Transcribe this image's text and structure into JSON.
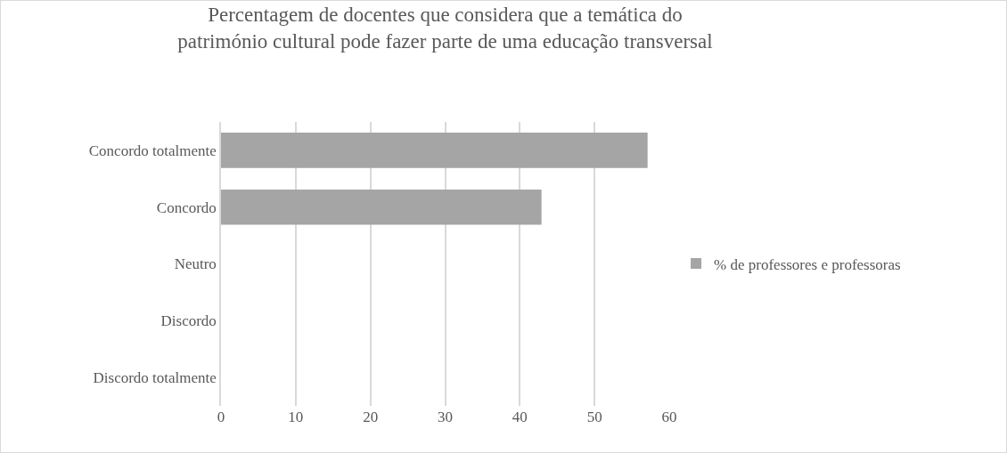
{
  "chart_data": {
    "type": "bar",
    "orientation": "horizontal",
    "title": "Percentagem de docentes que considera que a temática do\npatrimónio cultural pode fazer parte de uma educação transversal",
    "categories": [
      "Concordo totalmente",
      "Concordo",
      "Neutro",
      "Discordo",
      "Discordo totalmente"
    ],
    "series": [
      {
        "name": "% de professores e professoras",
        "color": "#a5a5a5",
        "values": [
          57.1,
          42.9,
          0,
          0,
          0
        ]
      }
    ],
    "xlim": [
      0,
      60
    ],
    "xticks": [
      0,
      10,
      20,
      30,
      40,
      50,
      60
    ],
    "grid": "x",
    "legend": "right"
  }
}
